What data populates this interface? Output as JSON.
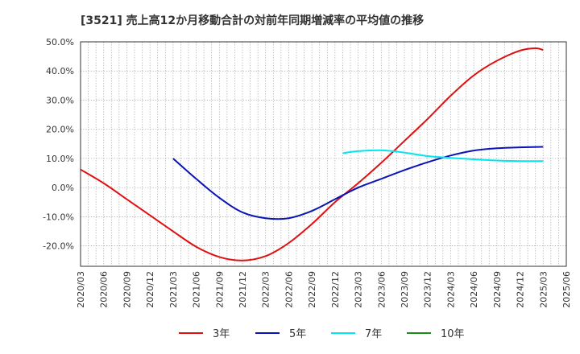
{
  "chart_data": {
    "type": "line",
    "title": "[3521]  売上高12か月移動合計の対前年同期増減率の平均値の推移",
    "xlabel": "",
    "ylabel": "",
    "ylim": [
      -27,
      50
    ],
    "y_ticks": [
      50,
      40,
      30,
      20,
      10,
      0,
      -10,
      -20
    ],
    "y_tick_labels": [
      "50.0%",
      "40.0%",
      "30.0%",
      "20.0%",
      "10.0%",
      "0.0%",
      "-10.0%",
      "-20.0%"
    ],
    "x_tick_labels": [
      "2020/03",
      "2020/06",
      "2020/09",
      "2020/12",
      "2021/03",
      "2021/06",
      "2021/09",
      "2021/12",
      "2022/03",
      "2022/06",
      "2022/09",
      "2022/12",
      "2023/03",
      "2023/06",
      "2023/09",
      "2023/12",
      "2024/03",
      "2024/06",
      "2024/09",
      "2024/12",
      "2025/03",
      "2025/06"
    ],
    "grid": true,
    "legend_position": "bottom",
    "series": [
      {
        "name": "3年",
        "color": "#e01010",
        "points": [
          [
            "2020/03",
            6.2
          ],
          [
            "2020/06",
            1.5
          ],
          [
            "2020/09",
            -4.0
          ],
          [
            "2020/12",
            -9.5
          ],
          [
            "2021/03",
            -15.0
          ],
          [
            "2021/06",
            -20.3
          ],
          [
            "2021/09",
            -23.8
          ],
          [
            "2021/12",
            -25.0
          ],
          [
            "2022/03",
            -23.5
          ],
          [
            "2022/06",
            -19.0
          ],
          [
            "2022/09",
            -12.5
          ],
          [
            "2022/12",
            -5.0
          ],
          [
            "2023/03",
            1.5
          ],
          [
            "2023/06",
            8.5
          ],
          [
            "2023/09",
            16.0
          ],
          [
            "2023/12",
            23.5
          ],
          [
            "2024/03",
            31.5
          ],
          [
            "2024/06",
            38.5
          ],
          [
            "2024/09",
            43.5
          ],
          [
            "2024/12",
            47.0
          ],
          [
            "2025/02",
            47.8
          ],
          [
            "2025/03",
            47.2
          ]
        ]
      },
      {
        "name": "5年",
        "color": "#0a14b4",
        "points": [
          [
            "2021/03",
            10.0
          ],
          [
            "2021/06",
            3.0
          ],
          [
            "2021/09",
            -3.5
          ],
          [
            "2021/12",
            -8.5
          ],
          [
            "2022/03",
            -10.5
          ],
          [
            "2022/06",
            -10.5
          ],
          [
            "2022/09",
            -8.0
          ],
          [
            "2022/12",
            -4.0
          ],
          [
            "2023/03",
            0.0
          ],
          [
            "2023/06",
            3.0
          ],
          [
            "2023/09",
            6.0
          ],
          [
            "2023/12",
            8.7
          ],
          [
            "2024/03",
            11.0
          ],
          [
            "2024/06",
            12.7
          ],
          [
            "2024/09",
            13.5
          ],
          [
            "2024/12",
            13.8
          ],
          [
            "2025/03",
            14.0
          ]
        ]
      },
      {
        "name": "7年",
        "color": "#00e5ee",
        "points": [
          [
            "2023/01",
            11.8
          ],
          [
            "2023/03",
            12.5
          ],
          [
            "2023/06",
            12.8
          ],
          [
            "2023/09",
            12.0
          ],
          [
            "2023/12",
            10.8
          ],
          [
            "2024/03",
            10.2
          ],
          [
            "2024/06",
            9.7
          ],
          [
            "2024/09",
            9.3
          ],
          [
            "2024/12",
            9.1
          ],
          [
            "2025/03",
            9.1
          ]
        ]
      },
      {
        "name": "10年",
        "color": "#1a8c1a",
        "points": []
      }
    ]
  }
}
